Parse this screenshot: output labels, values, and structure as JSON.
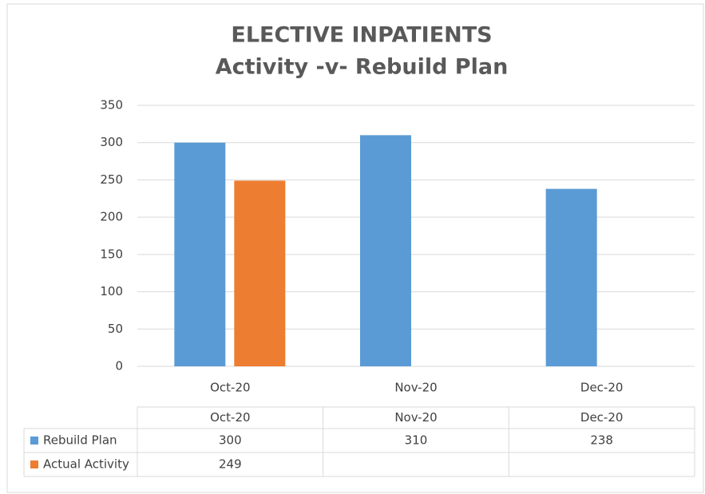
{
  "chart_data": {
    "type": "bar",
    "title": "ELECTIVE INPATIENTS",
    "subtitle": "Activity -v- Rebuild Plan",
    "categories": [
      "Oct-20",
      "Nov-20",
      "Dec-20"
    ],
    "series": [
      {
        "name": "Rebuild Plan",
        "color": "#5b9bd5",
        "values": [
          300,
          310,
          238
        ]
      },
      {
        "name": "Actual Activity",
        "color": "#ed7d31",
        "values": [
          249,
          null,
          null
        ]
      }
    ],
    "ylim": [
      0,
      350
    ],
    "yticks": [
      0,
      50,
      100,
      150,
      200,
      250,
      300,
      350
    ],
    "grid": true
  }
}
